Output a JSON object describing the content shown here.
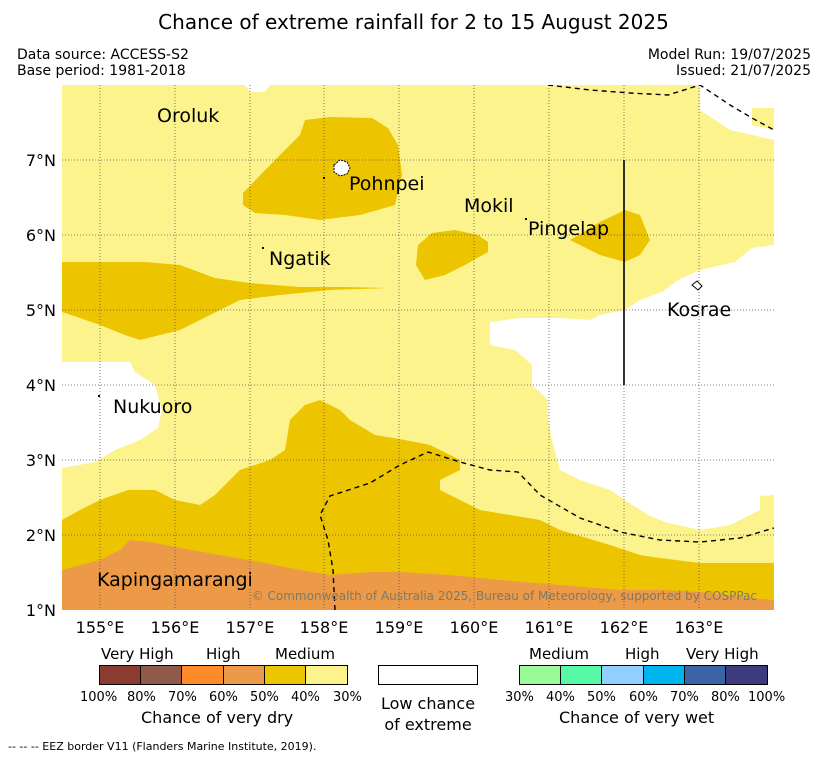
{
  "title": "Chance of extreme rainfall for 2 to 15 August 2025",
  "data_source": "Data source: ACCESS-S2",
  "base_period": "Base period: 1981-2018",
  "model_run": "Model Run: 19/07/2025",
  "issued": "Issued: 21/07/2025",
  "map": {
    "lon_labels": [
      "155°E",
      "156°E",
      "157°E",
      "158°E",
      "159°E",
      "160°E",
      "161°E",
      "162°E",
      "163°E"
    ],
    "lat_labels": [
      "7°N",
      "6°N",
      "5°N",
      "4°N",
      "3°N",
      "2°N",
      "1°N"
    ],
    "places": [
      {
        "name": "Oroluk"
      },
      {
        "name": "Pohnpei"
      },
      {
        "name": "Mokil"
      },
      {
        "name": "Pingelap"
      },
      {
        "name": "Ngatik"
      },
      {
        "name": "Kosrae"
      },
      {
        "name": "Nukuoro"
      },
      {
        "name": "Kapingamarangi"
      }
    ],
    "copyright": "© Commonwealth of Australia 2025, Bureau of Meteorology, supported by COSPPac",
    "colors": {
      "dry_medium_light": "#fdf38c",
      "dry_medium": "#ecc400",
      "dry_high": "#ec9a48",
      "low": "#ffffff"
    }
  },
  "legend": {
    "dry": {
      "categories": [
        "Very High",
        "High",
        "Medium"
      ],
      "percents": [
        "100%",
        "80%",
        "70%",
        "60%",
        "50%",
        "40%",
        "30%"
      ],
      "colors": [
        "#8b3b2f",
        "#8f5a4a",
        "#ff8a2a",
        "#ec9a48",
        "#ecc400",
        "#fdf38c"
      ],
      "caption": "Chance of very dry"
    },
    "low": {
      "caption_line1": "Low chance",
      "caption_line2": "of extreme"
    },
    "wet": {
      "categories": [
        "Medium",
        "High",
        "Very High"
      ],
      "percents": [
        "30%",
        "40%",
        "50%",
        "60%",
        "70%",
        "80%",
        "100%"
      ],
      "colors": [
        "#98fb98",
        "#57f8a6",
        "#8fd0ff",
        "#00b4ee",
        "#3b64a8",
        "#3b3b7d"
      ],
      "caption": "Chance of very wet"
    }
  },
  "footnote": "--  --  -- EEZ border V11 (Flanders Marine Institute, 2019)."
}
